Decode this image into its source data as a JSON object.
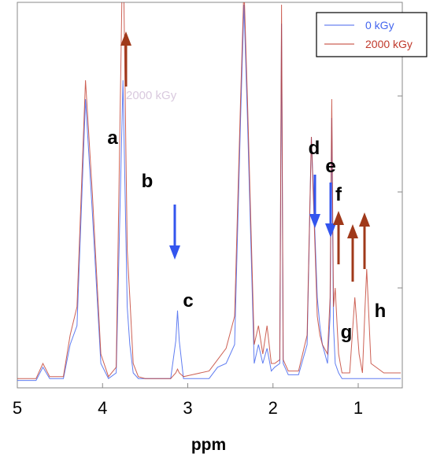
{
  "chart_data": {
    "type": "line",
    "xlabel": "ppm",
    "ylabel": "",
    "x_reversed": true,
    "xlim": [
      5,
      0.5
    ],
    "x_ticks": [
      {
        "value": 5,
        "label": "5"
      },
      {
        "value": 4,
        "label": "4"
      },
      {
        "value": 3,
        "label": "3"
      },
      {
        "value": 2,
        "label": "2"
      },
      {
        "value": 1,
        "label": "1"
      }
    ],
    "grid": false,
    "legend_position": "top-right",
    "series": [
      {
        "name": "0 kGy",
        "color": "#4466ee",
        "x": [
          5.0,
          4.78,
          4.7,
          4.62,
          4.46,
          4.38,
          4.3,
          4.2,
          4.12,
          4.02,
          3.93,
          3.84,
          3.76,
          3.71,
          3.68,
          3.64,
          3.58,
          3.5,
          3.35,
          3.2,
          3.14,
          3.12,
          3.1,
          3.05,
          2.95,
          2.75,
          2.65,
          2.55,
          2.45,
          2.38,
          2.34,
          2.3,
          2.22,
          2.17,
          2.12,
          2.07,
          2.02,
          1.98,
          1.92,
          1.9,
          1.88,
          1.82,
          1.7,
          1.6,
          1.55,
          1.48,
          1.45,
          1.42,
          1.36,
          1.33,
          1.31,
          1.29,
          1.27,
          1.23,
          1.19,
          1.1,
          1.04,
          0.99,
          0.95,
          0.92,
          0.9,
          0.85,
          0.7,
          0.5
        ],
        "values": [
          0.01,
          0.01,
          0.08,
          0.02,
          0.02,
          0.2,
          0.3,
          1.5,
          0.9,
          0.1,
          0.02,
          0.05,
          1.6,
          0.4,
          0.2,
          0.05,
          0.02,
          0.02,
          0.02,
          0.02,
          0.22,
          0.38,
          0.22,
          0.02,
          0.02,
          0.02,
          0.08,
          0.1,
          0.2,
          1.4,
          2.0,
          1.4,
          0.1,
          0.2,
          0.1,
          0.18,
          0.06,
          0.08,
          0.1,
          1.9,
          0.1,
          0.04,
          0.04,
          0.2,
          1.3,
          0.45,
          0.3,
          0.2,
          0.1,
          0.35,
          1.4,
          0.3,
          0.1,
          0.05,
          0.02,
          0.02,
          0.02,
          0.02,
          0.02,
          0.02,
          0.02,
          0.02,
          0.02,
          0.02
        ]
      },
      {
        "name": "2000 kGy",
        "color": "#c0392b",
        "x": [
          5.0,
          4.78,
          4.7,
          4.62,
          4.46,
          4.38,
          4.3,
          4.2,
          4.12,
          4.02,
          3.93,
          3.84,
          3.76,
          3.71,
          3.68,
          3.64,
          3.58,
          3.5,
          3.35,
          3.2,
          3.14,
          3.12,
          3.1,
          3.05,
          2.95,
          2.75,
          2.65,
          2.55,
          2.45,
          2.38,
          2.34,
          2.3,
          2.22,
          2.17,
          2.12,
          2.07,
          2.02,
          1.98,
          1.92,
          1.9,
          1.88,
          1.82,
          1.7,
          1.6,
          1.55,
          1.48,
          1.45,
          1.42,
          1.36,
          1.33,
          1.31,
          1.29,
          1.27,
          1.23,
          1.19,
          1.1,
          1.04,
          0.99,
          0.95,
          0.92,
          0.9,
          0.85,
          0.7,
          0.5
        ],
        "values": [
          0.02,
          0.02,
          0.1,
          0.03,
          0.03,
          0.25,
          0.4,
          1.6,
          1.0,
          0.15,
          0.03,
          0.08,
          2.4,
          0.7,
          0.45,
          0.1,
          0.03,
          0.02,
          0.02,
          0.02,
          0.05,
          0.07,
          0.05,
          0.03,
          0.04,
          0.06,
          0.12,
          0.18,
          0.35,
          1.5,
          2.1,
          1.5,
          0.2,
          0.3,
          0.15,
          0.3,
          0.1,
          0.1,
          0.12,
          2.0,
          0.12,
          0.06,
          0.06,
          0.25,
          1.3,
          0.35,
          0.25,
          0.2,
          0.15,
          0.45,
          1.5,
          0.4,
          0.5,
          0.15,
          0.05,
          0.05,
          0.45,
          0.15,
          0.05,
          0.4,
          0.6,
          0.1,
          0.05,
          0.05
        ]
      }
    ],
    "annotations": [
      {
        "label": "a",
        "ppm": 3.76
      },
      {
        "label": "b",
        "ppm": 3.65
      },
      {
        "label": "c",
        "ppm": 3.12
      },
      {
        "label": "d",
        "ppm": 1.45
      },
      {
        "label": "e",
        "ppm": 1.31
      },
      {
        "label": "f",
        "ppm": 1.22
      },
      {
        "label": "g",
        "ppm": 1.02
      },
      {
        "label": "h",
        "ppm": 0.91
      }
    ],
    "arrows": [
      {
        "ppm": 3.72,
        "direction": "up",
        "color": "#a0391a"
      },
      {
        "ppm": 3.12,
        "direction": "down",
        "color": "#3355ee"
      },
      {
        "ppm": 1.48,
        "direction": "down",
        "color": "#3355ee"
      },
      {
        "ppm": 1.34,
        "direction": "down",
        "color": "#3355ee"
      },
      {
        "ppm": 1.22,
        "direction": "up",
        "color": "#a0391a"
      },
      {
        "ppm": 1.03,
        "direction": "up",
        "color": "#a0391a"
      },
      {
        "ppm": 0.91,
        "direction": "up",
        "color": "#a0391a"
      }
    ],
    "faint_inset": {
      "text": "2000 kGy"
    }
  }
}
